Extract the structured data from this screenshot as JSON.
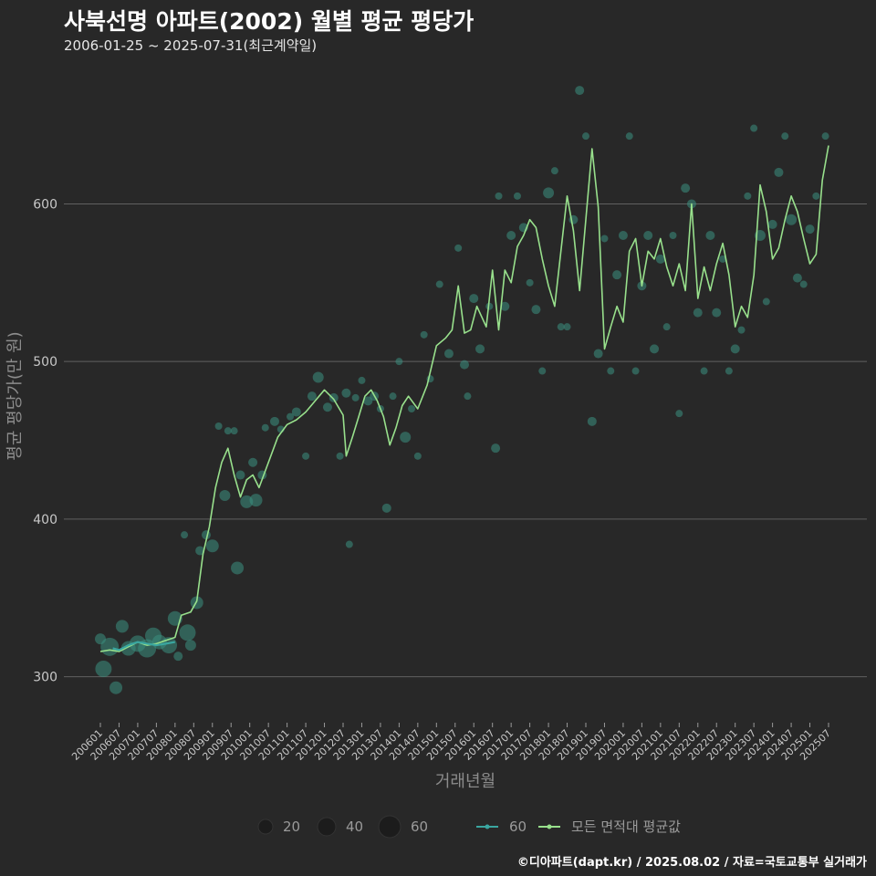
{
  "header": {
    "title": "사북선명 아파트(2002) 월별 평균 평당가",
    "subtitle": "2006-01-25 ~ 2025-07-31(최근계약일)"
  },
  "footer": {
    "credit": "©디아파트(dapt.kr) / 2025.08.02 / 자료=국토교통부 실거래가"
  },
  "colors": {
    "background": "#282828",
    "grid": "#606060",
    "avg_line": "#98e08c",
    "area_line": "#3aa6a0",
    "point": "#3a8f80"
  },
  "chart_data": {
    "type": "line",
    "xlabel": "거래년월",
    "ylabel": "평균 평당가(만 원)",
    "ylim": [
      272,
      690
    ],
    "yticks": [
      300,
      400,
      500,
      600
    ],
    "grid": true,
    "legend_position": "bottom",
    "x_tick_labels": [
      "200601",
      "200607",
      "200701",
      "200707",
      "200801",
      "200807",
      "200901",
      "200907",
      "201001",
      "201007",
      "201101",
      "201107",
      "201201",
      "201207",
      "201301",
      "201307",
      "201401",
      "201407",
      "201501",
      "201507",
      "201601",
      "201607",
      "201701",
      "201707",
      "201801",
      "201807",
      "201901",
      "201907",
      "202001",
      "202007",
      "202101",
      "202107",
      "202201",
      "202207",
      "202301",
      "202307",
      "202401",
      "202407",
      "202501",
      "202507"
    ],
    "x_start": "2006-01",
    "x_end": "2025-07",
    "size_legend": {
      "values": [
        20,
        40,
        60
      ]
    },
    "series": [
      {
        "name": "모든 면적대 평균값",
        "kind": "line",
        "anchors": [
          [
            "2006-01",
            316
          ],
          [
            "2006-04",
            317
          ],
          [
            "2006-07",
            316
          ],
          [
            "2006-10",
            319
          ],
          [
            "2007-01",
            322
          ],
          [
            "2007-04",
            320
          ],
          [
            "2007-07",
            321
          ],
          [
            "2007-10",
            323
          ],
          [
            "2008-01",
            325
          ],
          [
            "2008-03",
            339
          ],
          [
            "2008-06",
            341
          ],
          [
            "2008-08",
            348
          ],
          [
            "2008-10",
            378
          ],
          [
            "2008-12",
            395
          ],
          [
            "2009-02",
            420
          ],
          [
            "2009-04",
            436
          ],
          [
            "2009-06",
            445
          ],
          [
            "2009-08",
            428
          ],
          [
            "2009-10",
            414
          ],
          [
            "2009-12",
            425
          ],
          [
            "2010-02",
            428
          ],
          [
            "2010-04",
            420
          ],
          [
            "2010-07",
            436
          ],
          [
            "2010-10",
            452
          ],
          [
            "2011-01",
            460
          ],
          [
            "2011-04",
            463
          ],
          [
            "2011-07",
            468
          ],
          [
            "2011-10",
            475
          ],
          [
            "2012-01",
            482
          ],
          [
            "2012-04",
            476
          ],
          [
            "2012-07",
            466
          ],
          [
            "2012-08",
            440
          ],
          [
            "2012-10",
            452
          ],
          [
            "2012-12",
            465
          ],
          [
            "2013-02",
            478
          ],
          [
            "2013-04",
            482
          ],
          [
            "2013-06",
            475
          ],
          [
            "2013-08",
            465
          ],
          [
            "2013-10",
            447
          ],
          [
            "2013-12",
            458
          ],
          [
            "2014-02",
            472
          ],
          [
            "2014-04",
            478
          ],
          [
            "2014-07",
            470
          ],
          [
            "2014-10",
            485
          ],
          [
            "2015-01",
            510
          ],
          [
            "2015-04",
            515
          ],
          [
            "2015-06",
            520
          ],
          [
            "2015-08",
            548
          ],
          [
            "2015-10",
            518
          ],
          [
            "2015-12",
            520
          ],
          [
            "2016-02",
            535
          ],
          [
            "2016-05",
            522
          ],
          [
            "2016-07",
            558
          ],
          [
            "2016-09",
            520
          ],
          [
            "2016-11",
            558
          ],
          [
            "2017-01",
            550
          ],
          [
            "2017-03",
            573
          ],
          [
            "2017-05",
            580
          ],
          [
            "2017-07",
            590
          ],
          [
            "2017-09",
            585
          ],
          [
            "2017-11",
            565
          ],
          [
            "2018-01",
            548
          ],
          [
            "2018-03",
            535
          ],
          [
            "2018-05",
            570
          ],
          [
            "2018-07",
            605
          ],
          [
            "2018-09",
            583
          ],
          [
            "2018-11",
            545
          ],
          [
            "2019-01",
            590
          ],
          [
            "2019-03",
            635
          ],
          [
            "2019-05",
            598
          ],
          [
            "2019-07",
            508
          ],
          [
            "2019-09",
            522
          ],
          [
            "2019-11",
            535
          ],
          [
            "2020-01",
            525
          ],
          [
            "2020-03",
            570
          ],
          [
            "2020-05",
            578
          ],
          [
            "2020-07",
            548
          ],
          [
            "2020-09",
            570
          ],
          [
            "2020-11",
            565
          ],
          [
            "2021-01",
            578
          ],
          [
            "2021-03",
            560
          ],
          [
            "2021-05",
            548
          ],
          [
            "2021-07",
            562
          ],
          [
            "2021-09",
            545
          ],
          [
            "2021-11",
            600
          ],
          [
            "2022-01",
            540
          ],
          [
            "2022-03",
            560
          ],
          [
            "2022-05",
            545
          ],
          [
            "2022-07",
            562
          ],
          [
            "2022-09",
            575
          ],
          [
            "2022-11",
            555
          ],
          [
            "2023-01",
            522
          ],
          [
            "2023-03",
            535
          ],
          [
            "2023-05",
            528
          ],
          [
            "2023-07",
            555
          ],
          [
            "2023-09",
            612
          ],
          [
            "2023-11",
            595
          ],
          [
            "2024-01",
            565
          ],
          [
            "2024-03",
            572
          ],
          [
            "2024-05",
            590
          ],
          [
            "2024-07",
            605
          ],
          [
            "2024-09",
            595
          ],
          [
            "2024-11",
            578
          ],
          [
            "2025-01",
            562
          ],
          [
            "2025-03",
            568
          ],
          [
            "2025-05",
            615
          ],
          [
            "2025-07",
            637
          ]
        ]
      },
      {
        "name": "60",
        "kind": "line",
        "anchors": [
          [
            "2006-05",
            318
          ],
          [
            "2006-07",
            317
          ],
          [
            "2006-10",
            320
          ],
          [
            "2007-01",
            322
          ],
          [
            "2007-04",
            321
          ],
          [
            "2007-07",
            320
          ],
          [
            "2007-10",
            321
          ],
          [
            "2008-01",
            322
          ]
        ]
      },
      {
        "name": "60",
        "kind": "scatter",
        "points": [
          [
            "2006-01",
            324,
            6
          ],
          [
            "2006-02",
            305,
            9
          ],
          [
            "2006-04",
            319,
            10
          ],
          [
            "2006-06",
            293,
            7
          ],
          [
            "2006-08",
            332,
            7
          ],
          [
            "2006-10",
            318,
            8
          ],
          [
            "2007-01",
            321,
            9
          ],
          [
            "2007-04",
            318,
            10
          ],
          [
            "2007-06",
            326,
            9
          ],
          [
            "2007-08",
            322,
            8
          ],
          [
            "2007-11",
            320,
            9
          ],
          [
            "2008-01",
            337,
            8
          ],
          [
            "2008-02",
            313,
            5
          ],
          [
            "2008-04",
            390,
            4
          ],
          [
            "2008-05",
            328,
            9
          ],
          [
            "2008-06",
            320,
            6
          ],
          [
            "2008-08",
            347,
            7
          ],
          [
            "2008-09",
            380,
            5
          ],
          [
            "2008-11",
            390,
            5
          ],
          [
            "2009-01",
            383,
            7
          ],
          [
            "2009-03",
            459,
            4
          ],
          [
            "2009-05",
            415,
            6
          ],
          [
            "2009-06",
            456,
            4
          ],
          [
            "2009-08",
            456,
            4
          ],
          [
            "2009-09",
            369,
            7
          ],
          [
            "2009-10",
            428,
            5
          ],
          [
            "2009-12",
            411,
            7
          ],
          [
            "2010-02",
            436,
            5
          ],
          [
            "2010-03",
            412,
            7
          ],
          [
            "2010-05",
            428,
            5
          ],
          [
            "2010-06",
            458,
            4
          ],
          [
            "2010-09",
            462,
            5
          ],
          [
            "2010-11",
            457,
            4
          ],
          [
            "2011-02",
            465,
            4
          ],
          [
            "2011-04",
            468,
            5
          ],
          [
            "2011-07",
            440,
            4
          ],
          [
            "2011-09",
            478,
            5
          ],
          [
            "2011-11",
            490,
            6
          ],
          [
            "2012-02",
            471,
            5
          ],
          [
            "2012-04",
            477,
            5
          ],
          [
            "2012-06",
            440,
            4
          ],
          [
            "2012-08",
            480,
            5
          ],
          [
            "2012-09",
            384,
            4
          ],
          [
            "2012-11",
            477,
            4
          ],
          [
            "2013-01",
            488,
            4
          ],
          [
            "2013-03",
            475,
            5
          ],
          [
            "2013-05",
            478,
            5
          ],
          [
            "2013-07",
            470,
            4
          ],
          [
            "2013-09",
            407,
            5
          ],
          [
            "2013-11",
            478,
            4
          ],
          [
            "2014-01",
            500,
            4
          ],
          [
            "2014-03",
            452,
            6
          ],
          [
            "2014-05",
            470,
            4
          ],
          [
            "2014-07",
            440,
            4
          ],
          [
            "2014-09",
            517,
            4
          ],
          [
            "2014-11",
            489,
            4
          ],
          [
            "2015-02",
            549,
            4
          ],
          [
            "2015-05",
            505,
            5
          ],
          [
            "2015-08",
            572,
            4
          ],
          [
            "2015-10",
            498,
            5
          ],
          [
            "2015-11",
            478,
            4
          ],
          [
            "2016-01",
            540,
            5
          ],
          [
            "2016-03",
            508,
            5
          ],
          [
            "2016-06",
            535,
            4
          ],
          [
            "2016-08",
            445,
            5
          ],
          [
            "2016-09",
            605,
            4
          ],
          [
            "2016-11",
            535,
            5
          ],
          [
            "2017-01",
            580,
            5
          ],
          [
            "2017-03",
            605,
            4
          ],
          [
            "2017-05",
            585,
            5
          ],
          [
            "2017-07",
            550,
            4
          ],
          [
            "2017-09",
            533,
            5
          ],
          [
            "2017-11",
            494,
            4
          ],
          [
            "2018-01",
            607,
            6
          ],
          [
            "2018-03",
            621,
            4
          ],
          [
            "2018-05",
            522,
            4
          ],
          [
            "2018-07",
            522,
            4
          ],
          [
            "2018-09",
            590,
            5
          ],
          [
            "2018-11",
            672,
            5
          ],
          [
            "2019-01",
            643,
            4
          ],
          [
            "2019-03",
            462,
            5
          ],
          [
            "2019-05",
            505,
            5
          ],
          [
            "2019-07",
            578,
            4
          ],
          [
            "2019-09",
            494,
            4
          ],
          [
            "2019-11",
            555,
            5
          ],
          [
            "2020-01",
            580,
            5
          ],
          [
            "2020-03",
            643,
            4
          ],
          [
            "2020-05",
            494,
            4
          ],
          [
            "2020-07",
            548,
            5
          ],
          [
            "2020-09",
            580,
            5
          ],
          [
            "2020-11",
            508,
            5
          ],
          [
            "2021-01",
            565,
            5
          ],
          [
            "2021-03",
            522,
            4
          ],
          [
            "2021-05",
            580,
            4
          ],
          [
            "2021-07",
            467,
            4
          ],
          [
            "2021-09",
            610,
            5
          ],
          [
            "2021-11",
            600,
            5
          ],
          [
            "2022-01",
            531,
            5
          ],
          [
            "2022-03",
            494,
            4
          ],
          [
            "2022-05",
            580,
            5
          ],
          [
            "2022-07",
            531,
            5
          ],
          [
            "2022-09",
            565,
            4
          ],
          [
            "2022-11",
            494,
            4
          ],
          [
            "2023-01",
            508,
            5
          ],
          [
            "2023-03",
            520,
            4
          ],
          [
            "2023-05",
            605,
            4
          ],
          [
            "2023-07",
            648,
            4
          ],
          [
            "2023-09",
            580,
            6
          ],
          [
            "2023-11",
            538,
            4
          ],
          [
            "2024-01",
            587,
            5
          ],
          [
            "2024-03",
            620,
            5
          ],
          [
            "2024-05",
            643,
            4
          ],
          [
            "2024-07",
            590,
            6
          ],
          [
            "2024-09",
            553,
            5
          ],
          [
            "2024-11",
            549,
            4
          ],
          [
            "2025-01",
            584,
            5
          ],
          [
            "2025-03",
            605,
            4
          ],
          [
            "2025-06",
            643,
            4
          ]
        ]
      }
    ]
  }
}
